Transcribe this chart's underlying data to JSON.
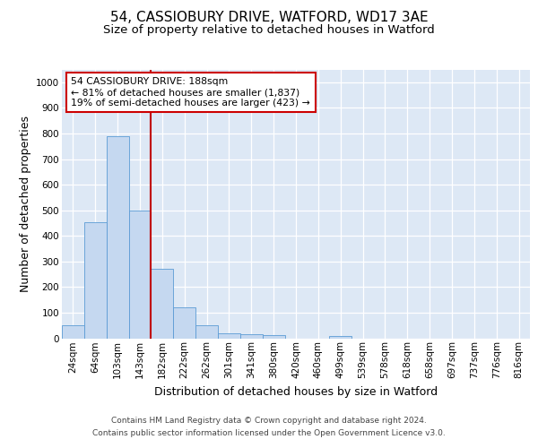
{
  "title_line1": "54, CASSIOBURY DRIVE, WATFORD, WD17 3AE",
  "title_line2": "Size of property relative to detached houses in Watford",
  "xlabel": "Distribution of detached houses by size in Watford",
  "ylabel": "Number of detached properties",
  "footer_line1": "Contains HM Land Registry data © Crown copyright and database right 2024.",
  "footer_line2": "Contains public sector information licensed under the Open Government Licence v3.0.",
  "categories": [
    "24sqm",
    "64sqm",
    "103sqm",
    "143sqm",
    "182sqm",
    "222sqm",
    "262sqm",
    "301sqm",
    "341sqm",
    "380sqm",
    "420sqm",
    "460sqm",
    "499sqm",
    "539sqm",
    "578sqm",
    "618sqm",
    "658sqm",
    "697sqm",
    "737sqm",
    "776sqm",
    "816sqm"
  ],
  "values": [
    50,
    455,
    790,
    500,
    270,
    120,
    52,
    20,
    15,
    12,
    0,
    0,
    10,
    0,
    0,
    0,
    0,
    0,
    0,
    0,
    0
  ],
  "bar_color": "#c5d8f0",
  "bar_edge_color": "#5b9bd5",
  "property_line_color": "#c00000",
  "property_line_index": 4,
  "annotation_text": "54 CASSIOBURY DRIVE: 188sqm\n← 81% of detached houses are smaller (1,837)\n19% of semi-detached houses are larger (423) →",
  "annotation_box_color": "#cc0000",
  "annotation_box_fill": "#ffffff",
  "ylim": [
    0,
    1050
  ],
  "yticks": [
    0,
    100,
    200,
    300,
    400,
    500,
    600,
    700,
    800,
    900,
    1000
  ],
  "fig_bg_color": "#ffffff",
  "plot_bg_color": "#dde8f5",
  "grid_color": "#ffffff",
  "title_fontsize": 11,
  "subtitle_fontsize": 9.5,
  "tick_fontsize": 7.5,
  "label_fontsize": 9,
  "footer_fontsize": 6.5
}
